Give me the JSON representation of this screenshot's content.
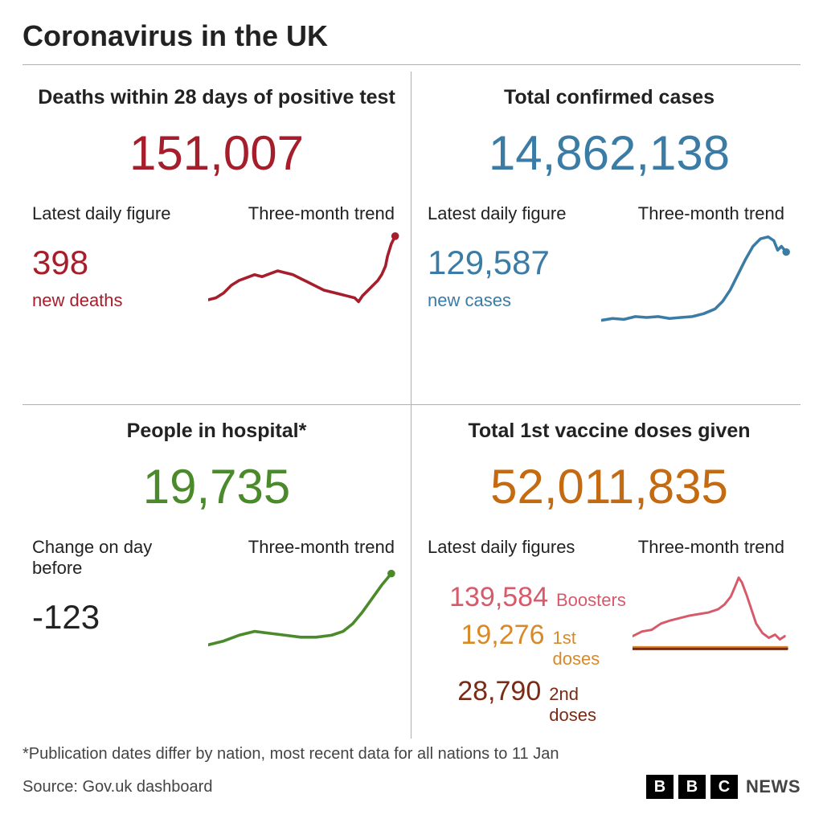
{
  "title": "Coronavirus in the UK",
  "colors": {
    "deaths": "#a61e2b",
    "cases": "#3a7ca5",
    "hospital": "#4a8a2a",
    "vaccine": "#c46a10",
    "boosters": "#d65a6a",
    "first_doses": "#d88a2a",
    "second_doses": "#7a2a15",
    "text": "#222222",
    "divider": "#b0b0b0",
    "background": "#ffffff"
  },
  "panels": {
    "deaths": {
      "title": "Deaths within 28 days of positive test",
      "total": "151,007",
      "latest_label": "Latest daily figure",
      "daily_value": "398",
      "daily_desc": "new deaths",
      "trend_label": "Three-month trend",
      "trend": {
        "type": "line",
        "stroke_width": 3,
        "points": [
          [
            0,
            70
          ],
          [
            8,
            68
          ],
          [
            16,
            63
          ],
          [
            24,
            55
          ],
          [
            32,
            50
          ],
          [
            40,
            47
          ],
          [
            48,
            44
          ],
          [
            56,
            46
          ],
          [
            64,
            43
          ],
          [
            72,
            40
          ],
          [
            80,
            42
          ],
          [
            88,
            44
          ],
          [
            96,
            48
          ],
          [
            104,
            52
          ],
          [
            112,
            56
          ],
          [
            120,
            60
          ],
          [
            128,
            62
          ],
          [
            136,
            64
          ],
          [
            144,
            66
          ],
          [
            152,
            68
          ],
          [
            156,
            72
          ],
          [
            160,
            66
          ],
          [
            168,
            58
          ],
          [
            176,
            50
          ],
          [
            180,
            44
          ],
          [
            184,
            35
          ],
          [
            186,
            25
          ],
          [
            190,
            12
          ],
          [
            194,
            4
          ]
        ],
        "end_dot": true
      }
    },
    "cases": {
      "title": "Total confirmed cases",
      "total": "14,862,138",
      "latest_label": "Latest daily figure",
      "daily_value": "129,587",
      "daily_desc": "new cases",
      "trend_label": "Three-month trend",
      "trend": {
        "type": "line",
        "stroke_width": 3,
        "points": [
          [
            0,
            92
          ],
          [
            12,
            90
          ],
          [
            24,
            91
          ],
          [
            36,
            88
          ],
          [
            48,
            89
          ],
          [
            60,
            88
          ],
          [
            72,
            90
          ],
          [
            84,
            89
          ],
          [
            96,
            88
          ],
          [
            108,
            85
          ],
          [
            120,
            80
          ],
          [
            128,
            72
          ],
          [
            136,
            60
          ],
          [
            144,
            44
          ],
          [
            152,
            28
          ],
          [
            160,
            14
          ],
          [
            168,
            6
          ],
          [
            176,
            4
          ],
          [
            182,
            8
          ],
          [
            186,
            18
          ],
          [
            190,
            14
          ],
          [
            195,
            20
          ]
        ],
        "end_dot": true
      }
    },
    "hospital": {
      "title": "People in hospital*",
      "total": "19,735",
      "latest_label": "Change on day before",
      "daily_value": "-123",
      "daily_desc": "",
      "trend_label": "Three-month trend",
      "trend": {
        "type": "line",
        "stroke_width": 3,
        "points": [
          [
            0,
            82
          ],
          [
            16,
            78
          ],
          [
            32,
            72
          ],
          [
            48,
            68
          ],
          [
            64,
            70
          ],
          [
            80,
            72
          ],
          [
            96,
            74
          ],
          [
            112,
            74
          ],
          [
            128,
            72
          ],
          [
            140,
            68
          ],
          [
            150,
            60
          ],
          [
            160,
            48
          ],
          [
            170,
            34
          ],
          [
            180,
            20
          ],
          [
            190,
            8
          ]
        ],
        "end_dot": true
      }
    },
    "vaccine": {
      "title": "Total 1st vaccine doses given",
      "total": "52,011,835",
      "latest_label": "Latest daily figures",
      "trend_label": "Three-month trend",
      "figures": {
        "boosters": {
          "value": "139,584",
          "label": "Boosters"
        },
        "first": {
          "value": "19,276",
          "label": "1st doses"
        },
        "second": {
          "value": "28,790",
          "label": "2nd doses"
        }
      },
      "trend": {
        "type": "multi-line",
        "stroke_width": 3,
        "series": {
          "boosters": [
            [
              0,
              78
            ],
            [
              12,
              72
            ],
            [
              24,
              70
            ],
            [
              36,
              62
            ],
            [
              48,
              58
            ],
            [
              60,
              55
            ],
            [
              72,
              52
            ],
            [
              84,
              50
            ],
            [
              96,
              48
            ],
            [
              108,
              44
            ],
            [
              116,
              38
            ],
            [
              124,
              28
            ],
            [
              130,
              14
            ],
            [
              134,
              4
            ],
            [
              138,
              10
            ],
            [
              144,
              26
            ],
            [
              150,
              44
            ],
            [
              156,
              62
            ],
            [
              164,
              74
            ],
            [
              172,
              80
            ],
            [
              180,
              76
            ],
            [
              186,
              82
            ],
            [
              192,
              78
            ]
          ],
          "first": [
            [
              0,
              92
            ],
            [
              30,
              92
            ],
            [
              60,
              92
            ],
            [
              90,
              92
            ],
            [
              120,
              92
            ],
            [
              150,
              92
            ],
            [
              180,
              92
            ],
            [
              195,
              92
            ]
          ],
          "second": [
            [
              0,
              94
            ],
            [
              30,
              94
            ],
            [
              60,
              94
            ],
            [
              90,
              94
            ],
            [
              120,
              94
            ],
            [
              150,
              94
            ],
            [
              180,
              94
            ],
            [
              195,
              94
            ]
          ]
        }
      }
    }
  },
  "footer": {
    "note": "*Publication dates differ by nation, most recent data for all nations to 11 Jan",
    "source": "Source: Gov.uk dashboard",
    "brand": {
      "b1": "B",
      "b2": "B",
      "b3": "C",
      "news": "NEWS"
    }
  }
}
